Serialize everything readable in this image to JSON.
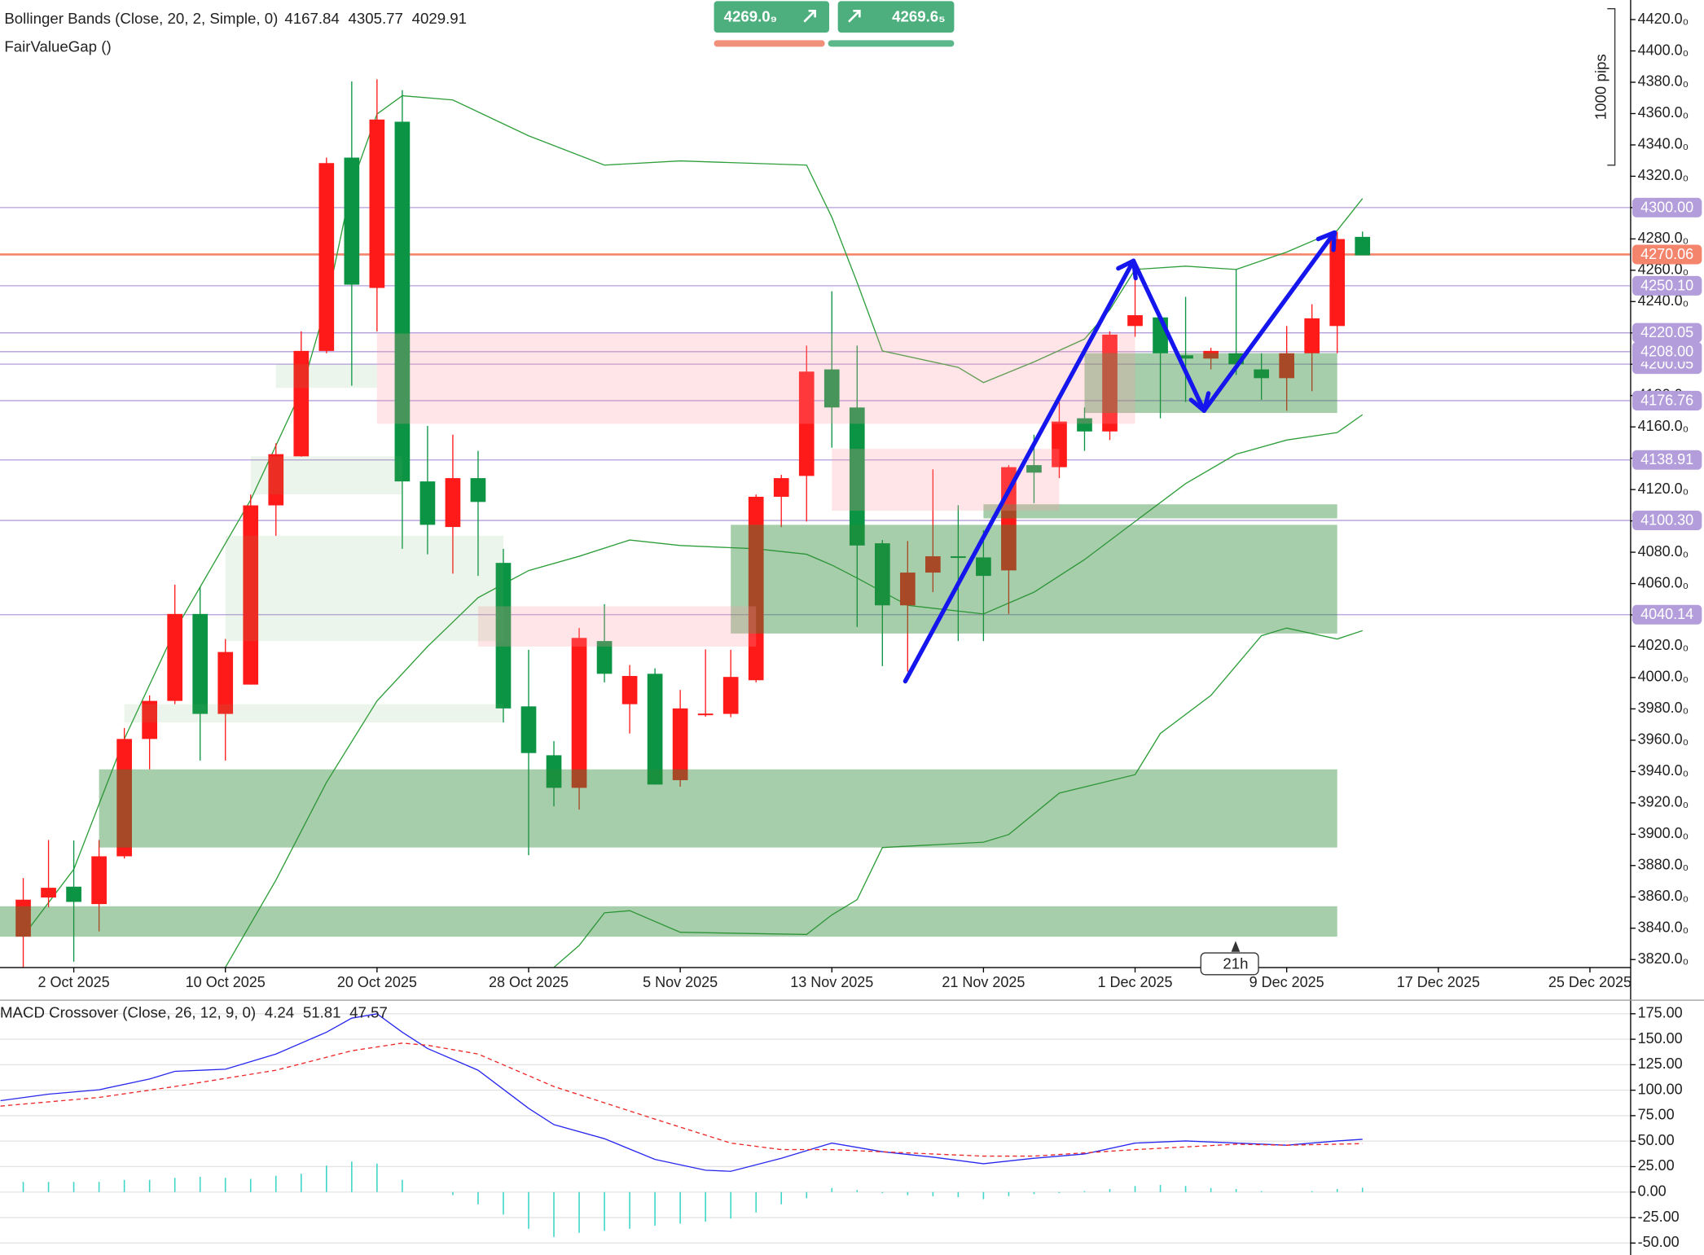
{
  "chart_data": [
    {
      "type": "candlestick",
      "indicator": "Bollinger Bands (Close, 20, 2, Simple, 0)",
      "indicator_2": "FairValueGap ()",
      "up_color": "#ff1a1a",
      "down_color": "#0b9444",
      "xlim": [
        -2.92,
        61.59
      ],
      "xticks": [
        {
          "value": 0,
          "label": "2 Oct 2025"
        },
        {
          "value": 6,
          "label": "10 Oct 2025"
        },
        {
          "value": 12,
          "label": "20 Oct 2025"
        },
        {
          "value": 18,
          "label": "28 Oct 2025"
        },
        {
          "value": 24,
          "label": "5 Nov 2025"
        },
        {
          "value": 30,
          "label": "13 Nov 2025"
        },
        {
          "value": 36,
          "label": "21 Nov 2025"
        },
        {
          "value": 42,
          "label": "1 Dec 2025"
        },
        {
          "value": 48,
          "label": "9 Dec 2025"
        },
        {
          "value": 54,
          "label": "17 Dec 2025"
        },
        {
          "value": 60,
          "label": "25 Dec 2025"
        }
      ],
      "ylim": [
        3815.2,
        4432.5
      ],
      "yticks": [
        {
          "value": 3820,
          "label": "3820.0₀"
        },
        {
          "value": 3840,
          "label": "3840.0₀"
        },
        {
          "value": 3860,
          "label": "3860.0₀"
        },
        {
          "value": 3880,
          "label": "3880.0₀"
        },
        {
          "value": 3900,
          "label": "3900.0₀"
        },
        {
          "value": 3920,
          "label": "3920.0₀"
        },
        {
          "value": 3940,
          "label": "3940.0₀"
        },
        {
          "value": 3960,
          "label": "3960.0₀"
        },
        {
          "value": 3980,
          "label": "3980.0₀"
        },
        {
          "value": 4000,
          "label": "4000.0₀"
        },
        {
          "value": 4020,
          "label": "4020.0₀"
        },
        {
          "value": 4040,
          "label": "4040.0₀"
        },
        {
          "value": 4060,
          "label": "4060.0₀"
        },
        {
          "value": 4080,
          "label": "4080.0₀"
        },
        {
          "value": 4100,
          "label": "4100.0₀"
        },
        {
          "value": 4120,
          "label": "4120.0₀"
        },
        {
          "value": 4140,
          "label": "4140.0₀"
        },
        {
          "value": 4160,
          "label": "4160.0₀"
        },
        {
          "value": 4180,
          "label": "4180.0₀"
        },
        {
          "value": 4200,
          "label": "4200.0₀"
        },
        {
          "value": 4220,
          "label": "4220.0₀"
        },
        {
          "value": 4240,
          "label": "4240.0₀"
        },
        {
          "value": 4260,
          "label": "4260.0₀"
        },
        {
          "value": 4280,
          "label": "4280.0₀"
        },
        {
          "value": 4300,
          "label": "4300.0₀"
        },
        {
          "value": 4320,
          "label": "4320.0₀"
        },
        {
          "value": 4340,
          "label": "4340.0₀"
        },
        {
          "value": 4360,
          "label": "4360.0₀"
        },
        {
          "value": 4380,
          "label": "4380.0₀"
        },
        {
          "value": 4400,
          "label": "4400.0₀"
        },
        {
          "value": 4420,
          "label": "4420.0₀"
        }
      ],
      "x": [
        -2,
        -1,
        0,
        1,
        2,
        3,
        4,
        5,
        6,
        7,
        8,
        9,
        10,
        11,
        12,
        13,
        14,
        15,
        16,
        17,
        18,
        19,
        20,
        21,
        22,
        23,
        24,
        25,
        26,
        27,
        28,
        29,
        30,
        31,
        32,
        33,
        34,
        35,
        36,
        37,
        38,
        39,
        40,
        41,
        42,
        43,
        44,
        45,
        46,
        47,
        48,
        49,
        50,
        51
      ],
      "open": [
        3834.6,
        3859.6,
        3866.5,
        3855.4,
        3885.9,
        3960.8,
        3985.1,
        4040.6,
        3976.8,
        3995.5,
        4109.9,
        4141.2,
        4208.5,
        4331.9,
        4248.7,
        4354.8,
        4125.2,
        4096.1,
        4127.3,
        4073.2,
        3981.6,
        3950.4,
        3929.6,
        4023.3,
        3983,
        4002.4,
        3934.5,
        3976,
        3976.8,
        3998.3,
        4115.4,
        4128.7,
        4196.7,
        4172.4,
        4085.7,
        4046.1,
        4067,
        4077.4,
        4076.7,
        4068.4,
        4135.6,
        4134.3,
        4165.5,
        4157.1,
        4224.4,
        4229.9,
        4205.7,
        4203.6,
        4207,
        4196.7,
        4191.1,
        4207,
        4224.4,
        4281.3
      ],
      "high": [
        3872,
        3896.3,
        3896,
        3896.3,
        3967.8,
        3988.6,
        4059.3,
        4058,
        4024.6,
        4116.8,
        4149.5,
        4221,
        4331.9,
        4380.5,
        4381.9,
        4374.9,
        4160.6,
        4155,
        4144.7,
        4082.2,
        4017.7,
        3959.4,
        4031.6,
        4046.8,
        4008,
        4005.9,
        3992.1,
        4018,
        4017.7,
        4116.8,
        4129.4,
        4211.9,
        4246.6,
        4211.9,
        4087.8,
        4087.1,
        4132.9,
        4110,
        4094,
        4135.6,
        4155,
        4175.9,
        4172.4,
        4221,
        4266,
        4231.3,
        4243,
        4210.5,
        4260.5,
        4207,
        4224.4,
        4238.3,
        4284.7,
        4284.7
      ],
      "low": [
        3815,
        3853.3,
        3818.6,
        3838,
        3884.5,
        3941.4,
        3983,
        3947,
        3947,
        3995.5,
        4090.5,
        4141,
        4207,
        4186.3,
        4220.9,
        4082.2,
        4078.7,
        4066.3,
        4064.9,
        3971.3,
        3886.6,
        3917.8,
        3915.7,
        3996.9,
        3964.3,
        3931.7,
        3930.3,
        3975,
        3974.7,
        3996.9,
        4096,
        4099.6,
        4146.7,
        4032.3,
        4007.3,
        4003.8,
        4054.5,
        4023.3,
        4023.3,
        4040.6,
        4111.3,
        4127.3,
        4144.7,
        4151.6,
        4217.5,
        4165.5,
        4175.9,
        4196.7,
        4193.2,
        4177.3,
        4170.3,
        4182.8,
        4207,
        4269.5
      ],
      "close": [
        3858.2,
        3865.8,
        3856.8,
        3885.9,
        3960.8,
        3985.1,
        4040.6,
        3976.8,
        4016.3,
        4109.9,
        4142.6,
        4208.5,
        4328.4,
        4250.8,
        4356.2,
        4125.2,
        4097.5,
        4127.3,
        4112.1,
        3980.3,
        3951.8,
        3929.6,
        4025.3,
        4002.4,
        4001,
        3931.7,
        3980.3,
        3977,
        4000.4,
        4115.4,
        4127.3,
        4195.3,
        4172.4,
        4084.3,
        4046.1,
        4067,
        4077.4,
        4077,
        4064.9,
        4134.3,
        4130.8,
        4163.4,
        4157.1,
        4218.9,
        4231.3,
        4207,
        4203.6,
        4208.5,
        4200,
        4191.1,
        4207,
        4229.3,
        4279.9,
        4269.5
      ],
      "bands": [
        {
          "color": "#2e9e3a",
          "x": [
            6,
            8,
            10,
            12,
            14,
            16,
            18,
            20,
            22,
            24,
            27,
            29,
            30,
            31,
            33,
            36,
            38,
            40,
            42,
            44,
            46,
            48,
            50,
            51
          ],
          "values": [
            3815,
            3870.7,
            3933.1,
            3985.1,
            4019.8,
            4051,
            4068.3,
            4077.4,
            4087.8,
            4084.3,
            4082.2,
            4078.7,
            4071.8,
            4063.5,
            4046.1,
            4040.6,
            4054.5,
            4075.3,
            4099.6,
            4123.8,
            4142.6,
            4151.6,
            4156.4,
            4167.84
          ]
        },
        {
          "color": "#2e9e3a",
          "x": [
            -2,
            0,
            2,
            4,
            7,
            9,
            10,
            11,
            12,
            13,
            15,
            18,
            21,
            24,
            29,
            30,
            31,
            32,
            35,
            36,
            38,
            40,
            41,
            42,
            44,
            46,
            48,
            50,
            51
          ],
          "values": [
            3835,
            3877.6,
            3960.8,
            4030,
            4113.4,
            4182.8,
            4238.3,
            4314.6,
            4359.7,
            4371.4,
            4368.7,
            4345.8,
            4327.1,
            4329.8,
            4327.1,
            4293.8,
            4252.2,
            4208.5,
            4198,
            4188.3,
            4201.5,
            4216.1,
            4234.8,
            4260.5,
            4262.6,
            4260.5,
            4271.6,
            4285.4,
            4305.77
          ]
        },
        {
          "color": "#2e9e3a",
          "x": [
            19,
            20,
            21,
            22,
            24,
            29,
            30,
            31,
            32,
            36,
            37,
            39,
            42,
            43,
            45,
            47,
            48,
            50,
            51
          ],
          "values": [
            3815,
            3829,
            3849.8,
            3851.2,
            3837.4,
            3836,
            3848.5,
            3858.2,
            3891.5,
            3894.9,
            3899.8,
            3926.2,
            3938,
            3964.3,
            3988.6,
            4026.7,
            4031.6,
            4024.6,
            4029.91
          ]
        }
      ],
      "zones": [
        {
          "x": [
            1,
            50
          ],
          "y": [
            3891.5,
            3941.4
          ],
          "color": "rgba(46,139,56,0.42)"
        },
        {
          "x": [
            -3,
            50
          ],
          "y": [
            3834.6,
            3854
          ],
          "color": "rgba(46,139,56,0.42)"
        },
        {
          "x": [
            26,
            50
          ],
          "y": [
            4028.1,
            4097.5
          ],
          "color": "rgba(46,139,56,0.42)"
        },
        {
          "x": [
            36,
            50
          ],
          "y": [
            4101.6,
            4110.6
          ],
          "color": "rgba(46,139,56,0.42)"
        },
        {
          "x": [
            40,
            50
          ],
          "y": [
            4168.9,
            4207.1
          ],
          "color": "rgba(46,139,56,0.42)"
        },
        {
          "x": [
            12,
            42
          ],
          "y": [
            4162,
            4219.6
          ],
          "color": "rgba(255,150,160,0.25)"
        },
        {
          "x": [
            30,
            39
          ],
          "y": [
            4106.5,
            4146
          ],
          "color": "rgba(255,150,160,0.25)"
        },
        {
          "x": [
            16,
            27
          ],
          "y": [
            4019.8,
            4045.5
          ],
          "color": "rgba(255,150,160,0.25)"
        },
        {
          "x": [
            8,
            12
          ],
          "y": [
            4184.9,
            4200
          ],
          "color": "rgba(110,180,100,0.13)"
        },
        {
          "x": [
            7,
            13
          ],
          "y": [
            4116.9,
            4141.2
          ],
          "color": "rgba(110,180,100,0.13)"
        },
        {
          "x": [
            6,
            17
          ],
          "y": [
            4023.3,
            4090.5
          ],
          "color": "rgba(110,180,100,0.13)"
        },
        {
          "x": [
            2,
            17
          ],
          "y": [
            3971.3,
            3983
          ],
          "color": "rgba(110,180,100,0.13)"
        }
      ],
      "levels": [
        {
          "value": 4300,
          "label": "4300.00",
          "color": "#b39ddb"
        },
        {
          "value": 4270.06,
          "label": "4270.06",
          "color": "#f4846c"
        },
        {
          "value": 4250.1,
          "label": "4250.10",
          "color": "#b39ddb"
        },
        {
          "value": 4220.05,
          "label": "4220.05",
          "color": "#b39ddb"
        },
        {
          "value": 4200.05,
          "label": "4200.05",
          "color": "#b39ddb"
        },
        {
          "value": 4208,
          "label": "4208.00",
          "color": "#b39ddb"
        },
        {
          "value": 4176.76,
          "label": "4176.76",
          "color": "#b39ddb"
        },
        {
          "value": 4138.91,
          "label": "4138.91",
          "color": "#b39ddb"
        },
        {
          "value": 4100.3,
          "label": "4100.30",
          "color": "#b39ddb"
        },
        {
          "value": 4040.14,
          "label": "4040.14",
          "color": "#b39ddb"
        }
      ]
    },
    {
      "type": "line",
      "title": "MACD Crossover (Close, 26, 12, 9, 0)",
      "xlim": [
        -2.92,
        61.59
      ],
      "ylim": [
        -61.73,
        186.73
      ],
      "yticks": [
        {
          "value": 175,
          "label": "175.00"
        },
        {
          "value": 150,
          "label": "150.00"
        },
        {
          "value": 125,
          "label": "125.00"
        },
        {
          "value": 100,
          "label": "100.00"
        },
        {
          "value": 75,
          "label": "75.00"
        },
        {
          "value": 50,
          "label": "50.00"
        },
        {
          "value": 25,
          "label": "25.00"
        },
        {
          "value": 0,
          "label": "0.00"
        },
        {
          "value": -25,
          "label": "-25.00"
        },
        {
          "value": -50,
          "label": "-50.00"
        }
      ],
      "grid": true,
      "series": [
        {
          "kind": "bar",
          "color": "#3fd6c8",
          "x": [
            -2,
            -1,
            0,
            1,
            2,
            3,
            4,
            5,
            6,
            7,
            8,
            9,
            10,
            11,
            12,
            13,
            14,
            15,
            16,
            17,
            18,
            19,
            20,
            21,
            22,
            23,
            24,
            25,
            26,
            27,
            28,
            29,
            30,
            31,
            32,
            33,
            34,
            35,
            36,
            37,
            38,
            39,
            40,
            41,
            42,
            43,
            44,
            45,
            46,
            47,
            48,
            49,
            50,
            51
          ],
          "values": [
            10,
            10,
            10,
            10,
            12,
            12,
            14,
            15,
            14,
            13,
            16,
            18,
            26,
            30,
            28,
            12,
            0,
            -3,
            -12,
            -22,
            -36,
            -44,
            -40,
            -38,
            -36,
            -33,
            -31,
            -29,
            -26,
            -20,
            -12,
            -6,
            4,
            2,
            -1,
            -3,
            -4,
            -5,
            -7,
            -4,
            -2,
            -1,
            1,
            3,
            6,
            7,
            6,
            4,
            3,
            1,
            0,
            1,
            3,
            4.24
          ]
        },
        {
          "kind": "line",
          "color": "#2828ee",
          "x": [
            -2.9,
            -1,
            1,
            3,
            4,
            6,
            8,
            10,
            11,
            12,
            13,
            14,
            16,
            18,
            19,
            21,
            23,
            25,
            26,
            28,
            30,
            32,
            34,
            36,
            38,
            40,
            42,
            44,
            46,
            48,
            50,
            51
          ],
          "values": [
            89.7,
            96.1,
            100.4,
            111,
            118.5,
            120.6,
            135.5,
            156.9,
            170.7,
            175,
            156.9,
            140.9,
            119.6,
            82.2,
            66.2,
            52.4,
            32.1,
            21.5,
            20.4,
            33.2,
            48.1,
            39.6,
            34.3,
            27.8,
            33.2,
            37.4,
            48.1,
            50.2,
            48.1,
            46,
            50.2,
            51.81
          ]
        },
        {
          "kind": "line",
          "dashed": true,
          "color": "#ee2828",
          "x": [
            -2.9,
            1,
            4,
            8,
            11,
            13,
            14,
            16,
            19,
            21,
            23,
            26,
            28,
            30,
            34,
            36,
            38,
            42,
            46,
            48,
            51
          ],
          "values": [
            84.4,
            92.9,
            103.6,
            119.6,
            138.7,
            146.2,
            144.1,
            135.5,
            103.6,
            87.6,
            71.6,
            48.1,
            41.7,
            41.7,
            37.4,
            35.3,
            35.3,
            41.7,
            47,
            46,
            47.57
          ]
        }
      ]
    }
  ],
  "toolbar": {
    "sell_price": "4269.0₉",
    "buy_price": "4269.6₅"
  },
  "ruler_label": "1000 pips",
  "time_label": "21h"
}
